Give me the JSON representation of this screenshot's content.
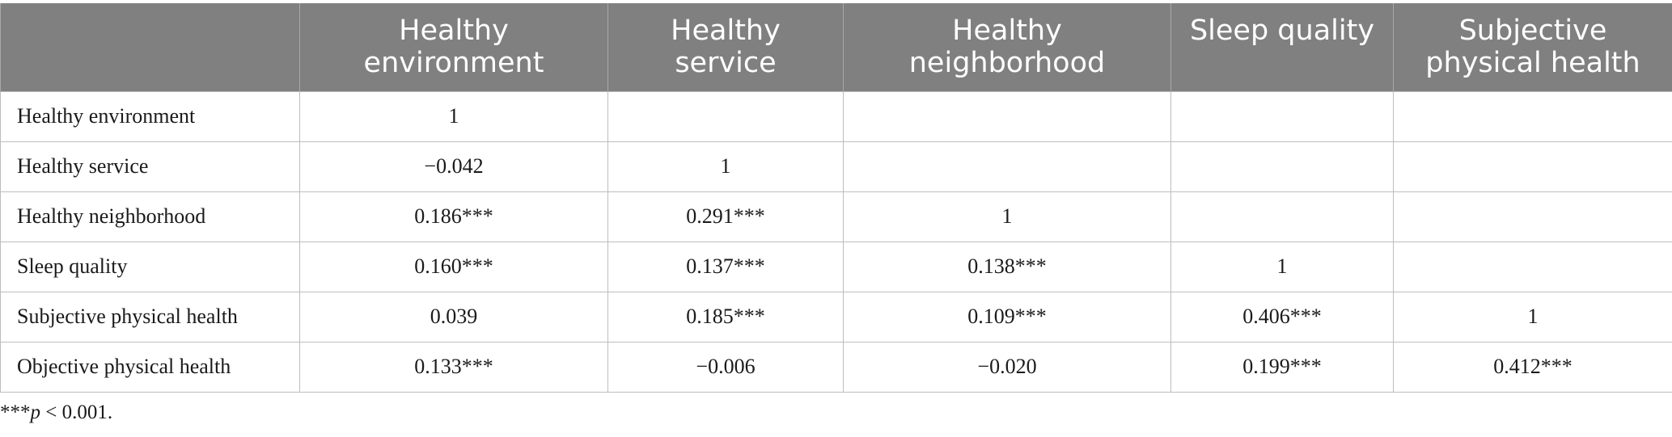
{
  "table": {
    "header": [
      "",
      "Healthy\nenvironment",
      "Healthy\nservice",
      "Healthy\nneighborhood",
      "Sleep quality",
      "Subjective\nphysical health"
    ],
    "header_lines": [
      [],
      [
        "Healthy",
        "environment"
      ],
      [
        "Healthy",
        "service"
      ],
      [
        "Healthy",
        "neighborhood"
      ],
      [
        "Sleep quality"
      ],
      [
        "Subjective",
        "physical health"
      ]
    ],
    "rows": [
      [
        "Healthy environment",
        "1",
        "",
        "",
        "",
        ""
      ],
      [
        "Healthy service",
        "−0.042",
        "1",
        "",
        "",
        ""
      ],
      [
        "Healthy neighborhood",
        "0.186***",
        "0.291***",
        "1",
        "",
        ""
      ],
      [
        "Sleep quality",
        "0.160***",
        "0.137***",
        "0.138***",
        "1",
        ""
      ],
      [
        "Subjective physical health",
        "0.039",
        "0.185***",
        "0.109***",
        "0.406***",
        "1"
      ],
      [
        "Objective physical health",
        "0.133***",
        "−0.006",
        "−0.020",
        "0.199***",
        "0.412***"
      ]
    ]
  },
  "footnote": {
    "stars": "***",
    "p_symbol": "p",
    "rest": " < 0.001."
  },
  "colors": {
    "header_bg": "#808080",
    "header_text": "#ffffff",
    "grid": "#bdbdbd"
  }
}
